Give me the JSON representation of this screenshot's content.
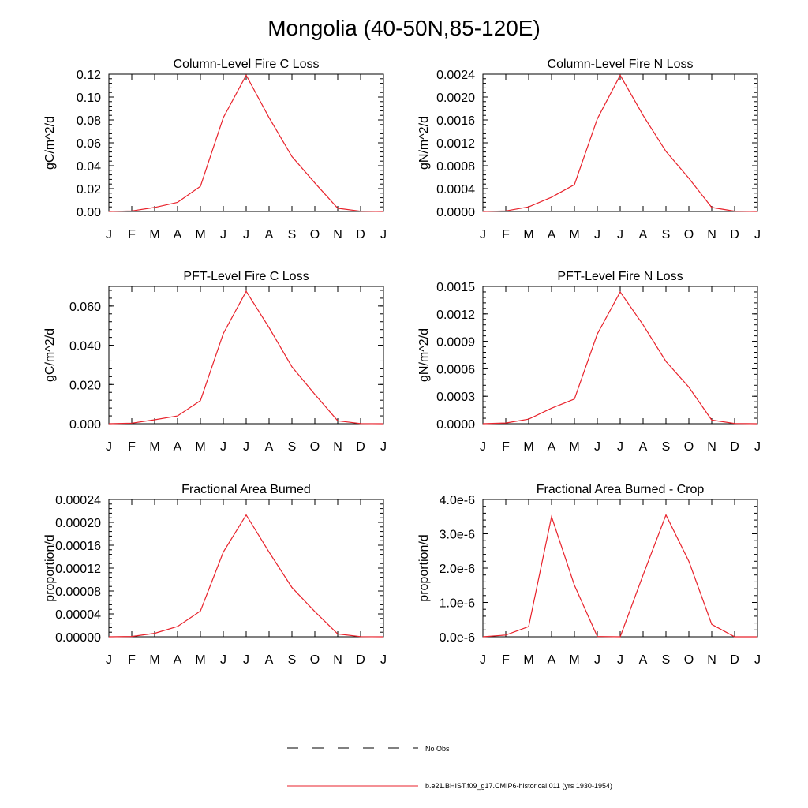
{
  "main_title": "Mongolia (40-50N,85-120E)",
  "colors": {
    "model_line": "#e8222b",
    "obs_line": "#000000"
  },
  "legend": {
    "obs_label": "No Obs",
    "model_label": "b.e21.BHIST.f09_g17.CMIP6-historical.011 (yrs 1930-1954)"
  },
  "chart_data": [
    {
      "type": "line",
      "title": "Column-Level Fire C Loss",
      "ylabel": "gC/m^2/d",
      "categories": [
        "J",
        "F",
        "M",
        "A",
        "M",
        "J",
        "J",
        "A",
        "S",
        "O",
        "N",
        "D",
        "J"
      ],
      "ylim": [
        0,
        0.12
      ],
      "yticks": [
        "0.00",
        "0.02",
        "0.04",
        "0.06",
        "0.08",
        "0.10",
        "0.12"
      ],
      "series": [
        {
          "values": [
            0,
            0.0005,
            0.0035,
            0.008,
            0.022,
            0.082,
            0.119,
            0.082,
            0.048,
            0.025,
            0.0028,
            0.0002,
            0
          ]
        }
      ]
    },
    {
      "type": "line",
      "title": "Column-Level Fire N Loss",
      "ylabel": "gN/m^2/d",
      "categories": [
        "J",
        "F",
        "M",
        "A",
        "M",
        "J",
        "J",
        "A",
        "S",
        "O",
        "N",
        "D",
        "J"
      ],
      "ylim": [
        0,
        0.0024
      ],
      "yticks": [
        "0.0000",
        "0.0004",
        "0.0008",
        "0.0012",
        "0.0016",
        "0.0020",
        "0.0024"
      ],
      "series": [
        {
          "values": [
            0,
            1e-05,
            8e-05,
            0.00025,
            0.00047,
            0.00162,
            0.00238,
            0.00168,
            0.00105,
            0.00058,
            7e-05,
            5e-06,
            0
          ]
        }
      ]
    },
    {
      "type": "line",
      "title": "PFT-Level Fire C Loss",
      "ylabel": "gC/m^2/d",
      "categories": [
        "J",
        "F",
        "M",
        "A",
        "M",
        "J",
        "J",
        "A",
        "S",
        "O",
        "N",
        "D",
        "J"
      ],
      "ylim": [
        0,
        0.07
      ],
      "yticks": [
        "0.000",
        "0.020",
        "0.040",
        "0.060"
      ],
      "ytick_values": [
        0,
        0.02,
        0.04,
        0.06
      ],
      "series": [
        {
          "values": [
            0,
            0.0003,
            0.002,
            0.004,
            0.0118,
            0.046,
            0.0675,
            0.049,
            0.029,
            0.015,
            0.0015,
            0.0001,
            0
          ]
        }
      ]
    },
    {
      "type": "line",
      "title": "PFT-Level Fire N Loss",
      "ylabel": "gN/m^2/d",
      "categories": [
        "J",
        "F",
        "M",
        "A",
        "M",
        "J",
        "J",
        "A",
        "S",
        "O",
        "N",
        "D",
        "J"
      ],
      "ylim": [
        0,
        0.0015
      ],
      "yticks": [
        "0.0000",
        "0.0003",
        "0.0006",
        "0.0009",
        "0.0012",
        "0.0015"
      ],
      "series": [
        {
          "values": [
            0,
            8e-06,
            5e-05,
            0.00017,
            0.00027,
            0.00098,
            0.00144,
            0.00108,
            0.00068,
            0.0004,
            4e-05,
            3e-06,
            0
          ]
        }
      ]
    },
    {
      "type": "line",
      "title": "Fractional Area Burned",
      "ylabel": "proportion/d",
      "categories": [
        "J",
        "F",
        "M",
        "A",
        "M",
        "J",
        "J",
        "A",
        "S",
        "O",
        "N",
        "D",
        "J"
      ],
      "ylim": [
        0,
        0.00024
      ],
      "yticks": [
        "0.00000",
        "0.00004",
        "0.00008",
        "0.00012",
        "0.00016",
        "0.00020",
        "0.00024"
      ],
      "series": [
        {
          "values": [
            0,
            5e-07,
            6e-06,
            1.8e-05,
            4.5e-05,
            0.000148,
            0.000213,
            0.000148,
            8.6e-05,
            4.4e-05,
            5e-06,
            3e-07,
            0
          ]
        }
      ]
    },
    {
      "type": "line",
      "title": "Fractional Area Burned - Crop",
      "ylabel": "proportion/d",
      "categories": [
        "J",
        "F",
        "M",
        "A",
        "M",
        "J",
        "J",
        "A",
        "S",
        "O",
        "N",
        "D",
        "J"
      ],
      "ylim": [
        0,
        4e-06
      ],
      "yticks": [
        "0.0e-6",
        "1.0e-6",
        "2.0e-6",
        "3.0e-6",
        "4.0e-6"
      ],
      "series": [
        {
          "values": [
            0,
            5e-08,
            3e-07,
            3.5e-06,
            1.5e-06,
            1e-08,
            0,
            1.8e-06,
            3.55e-06,
            2.2e-06,
            3.6e-07,
            0,
            0
          ]
        }
      ]
    }
  ]
}
